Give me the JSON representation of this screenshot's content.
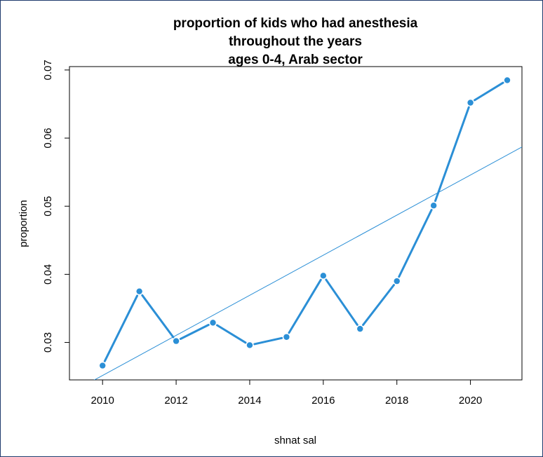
{
  "chart_data": {
    "type": "line",
    "title_lines": [
      "proportion of kids who had anesthesia",
      "throughout the years",
      "ages 0-4, Arab sector"
    ],
    "xlabel": "shnat sal",
    "ylabel": "proportion",
    "xlim": [
      2009.1,
      2021.4
    ],
    "ylim": [
      0.0245,
      0.0705
    ],
    "x_ticks": [
      2010,
      2012,
      2014,
      2016,
      2018,
      2020
    ],
    "y_ticks": [
      0.03,
      0.04,
      0.05,
      0.06,
      0.07
    ],
    "x_tick_labels": [
      "2010",
      "2012",
      "2014",
      "2016",
      "2018",
      "2020"
    ],
    "y_tick_labels": [
      "0.03",
      "0.04",
      "0.05",
      "0.06",
      "0.07"
    ],
    "series": [
      {
        "x": [
          2010,
          2011,
          2012,
          2013,
          2014,
          2015,
          2016,
          2017,
          2018,
          2019,
          2020,
          2021
        ],
        "values": [
          0.0266,
          0.0375,
          0.0302,
          0.0329,
          0.0296,
          0.0308,
          0.0398,
          0.032,
          0.039,
          0.0501,
          0.0652,
          0.0685
        ],
        "color": "#2b8fd6",
        "style": "line+points"
      }
    ],
    "trend_line": {
      "color": "#2b8fd6",
      "x": [
        2009.1,
        2021.4
      ],
      "y": [
        0.0225,
        0.0587
      ]
    },
    "grid": false,
    "legend": "none"
  }
}
